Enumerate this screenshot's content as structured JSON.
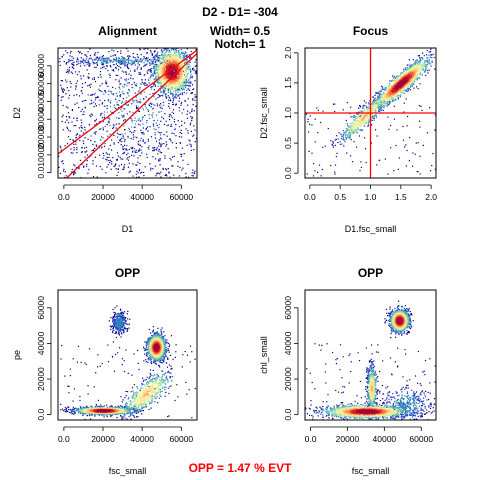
{
  "figure": {
    "title_lines": [
      "D2 - D1= -304",
      "Width= 0.5",
      "Notch= 1"
    ],
    "footer": "OPP = 1.47 % EVT",
    "footer_color": "#ff0000",
    "density_palette": [
      "#00008b",
      "#1f3fbf",
      "#2b83ba",
      "#66c2a5",
      "#abdda4",
      "#e6f598",
      "#fee08b",
      "#fdae61",
      "#f46d43",
      "#d7191c",
      "#9e0142"
    ]
  },
  "chart_data": [
    {
      "id": "alignment",
      "type": "scatter",
      "density_colored": true,
      "title": "Alignment",
      "xlabel": "D1",
      "ylabel": "D2",
      "xlim": [
        -3000,
        68000
      ],
      "ylim": [
        -3000,
        70000
      ],
      "xticks": [
        0,
        20000,
        40000,
        60000
      ],
      "yticks": [
        0,
        10000,
        20000,
        30000,
        40000,
        50000,
        60000
      ],
      "clusters": [
        {
          "center": [
            55000,
            57000
          ],
          "spread": [
            4500,
            6000
          ],
          "peak": "dense"
        },
        {
          "center": [
            30000,
            63000
          ],
          "spread": [
            16000,
            1500
          ],
          "peak": "sparse"
        },
        {
          "center": [
            35000,
            35000
          ],
          "spread": [
            15000,
            15000
          ],
          "peak": "sparse"
        }
      ],
      "lines": [
        {
          "kind": "abline",
          "intercept": 13000,
          "slope": 0.82,
          "color": "#ff0000"
        },
        {
          "kind": "abline",
          "intercept": -4500,
          "slope": 1.05,
          "color": "#ff0000"
        }
      ]
    },
    {
      "id": "focus",
      "type": "scatter",
      "density_colored": true,
      "title": "Focus",
      "xlabel": "D1.fsc_small",
      "ylabel": "D2.fsc_small",
      "xlim": [
        -0.08,
        2.08
      ],
      "ylim": [
        -0.08,
        2.08
      ],
      "xticks": [
        0.0,
        0.5,
        1.0,
        1.5,
        2.0
      ],
      "yticks": [
        0.0,
        0.5,
        1.0,
        1.5,
        2.0
      ],
      "clusters": [
        {
          "center": [
            1.5,
            1.5
          ],
          "spread": [
            0.22,
            0.2
          ],
          "peak": "dense"
        },
        {
          "center": [
            0.9,
            0.95
          ],
          "spread": [
            0.2,
            0.2
          ],
          "peak": "medium"
        }
      ],
      "lines": [
        {
          "kind": "vline",
          "value": 1.0,
          "color": "#ff0000"
        },
        {
          "kind": "hline",
          "value": 1.0,
          "color": "#ff0000"
        }
      ]
    },
    {
      "id": "opp_pe",
      "type": "scatter",
      "density_colored": true,
      "title": "OPP",
      "xlabel": "fsc_small",
      "ylabel": "pe",
      "xlim": [
        -3000,
        68000
      ],
      "ylim": [
        -3000,
        70000
      ],
      "xticks": [
        0,
        20000,
        40000,
        60000
      ],
      "yticks": [
        0,
        20000,
        40000,
        60000
      ],
      "clusters": [
        {
          "center": [
            20000,
            2500
          ],
          "spread": [
            7000,
            1000
          ],
          "peak": "dense"
        },
        {
          "center": [
            47000,
            38000
          ],
          "spread": [
            2200,
            3500
          ],
          "peak": "dense"
        },
        {
          "center": [
            42000,
            12000
          ],
          "spread": [
            6000,
            6000
          ],
          "peak": "medium"
        },
        {
          "center": [
            28000,
            52000
          ],
          "spread": [
            1800,
            3000
          ],
          "peak": "sparse"
        }
      ],
      "lines": []
    },
    {
      "id": "opp_chl",
      "type": "scatter",
      "density_colored": true,
      "title": "OPP",
      "xlabel": "fsc_small",
      "ylabel": "chl_small",
      "xlim": [
        -3000,
        68000
      ],
      "ylim": [
        -3000,
        70000
      ],
      "xticks": [
        0,
        20000,
        40000,
        60000
      ],
      "yticks": [
        0,
        20000,
        40000,
        60000
      ],
      "clusters": [
        {
          "center": [
            48000,
            53000
          ],
          "spread": [
            2500,
            3000
          ],
          "peak": "dense"
        },
        {
          "center": [
            30000,
            2000
          ],
          "spread": [
            11000,
            1800
          ],
          "peak": "dense"
        },
        {
          "center": [
            33000,
            15000
          ],
          "spread": [
            1200,
            6000
          ],
          "peak": "medium"
        },
        {
          "center": [
            52000,
            6000
          ],
          "spread": [
            7000,
            5000
          ],
          "peak": "sparse"
        }
      ],
      "lines": []
    }
  ]
}
